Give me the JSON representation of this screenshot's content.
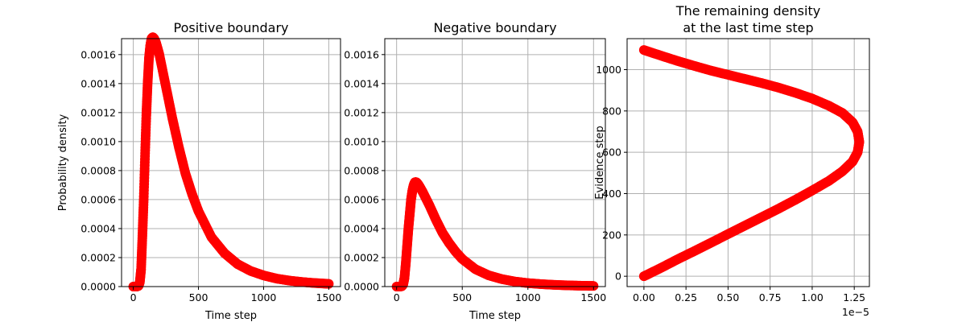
{
  "chart_data": [
    {
      "type": "scatter",
      "title": "Positive boundary",
      "xlabel": "Time step",
      "ylabel": "Probability density",
      "xlim": [
        -90,
        1590
      ],
      "ylim": [
        0,
        0.00171
      ],
      "xticks": [
        0,
        500,
        1000,
        1500
      ],
      "xtick_labels": [
        "0",
        "500",
        "1000",
        "1500"
      ],
      "yticks": [
        0,
        0.0002,
        0.0004,
        0.0006,
        0.0008,
        0.001,
        0.0012,
        0.0014,
        0.0016
      ],
      "ytick_labels": [
        "0.0000",
        "0.0002",
        "0.0004",
        "0.0006",
        "0.0008",
        "0.0010",
        "0.0012",
        "0.0014",
        "0.0016"
      ],
      "grid": true,
      "color": "#ff0000",
      "x": [
        0,
        25,
        40,
        50,
        60,
        70,
        80,
        90,
        100,
        110,
        120,
        130,
        140,
        150,
        160,
        175,
        200,
        250,
        300,
        350,
        400,
        450,
        500,
        600,
        700,
        800,
        900,
        1000,
        1100,
        1200,
        1300,
        1400,
        1500
      ],
      "y": [
        0,
        0,
        5e-06,
        3e-05,
        0.00012,
        0.00035,
        0.0006,
        0.0009,
        0.00118,
        0.0014,
        0.00157,
        0.00166,
        0.00171,
        0.00172,
        0.00171,
        0.00168,
        0.0016,
        0.00138,
        0.00116,
        0.00096,
        0.00078,
        0.00064,
        0.00052,
        0.00034,
        0.00023,
        0.000155,
        0.000108,
        7.7e-05,
        5.5e-05,
        4.1e-05,
        3.1e-05,
        2.4e-05,
        1.9e-05
      ]
    },
    {
      "type": "scatter",
      "title": "Negative boundary",
      "xlabel": "Time step",
      "ylabel": "",
      "xlim": [
        -90,
        1590
      ],
      "ylim": [
        0,
        0.00171
      ],
      "xticks": [
        0,
        500,
        1000,
        1500
      ],
      "xtick_labels": [
        "0",
        "500",
        "1000",
        "1500"
      ],
      "yticks": [
        0,
        0.0002,
        0.0004,
        0.0006,
        0.0008,
        0.001,
        0.0012,
        0.0014,
        0.0016
      ],
      "ytick_labels": [
        "0.0000",
        "0.0002",
        "0.0004",
        "0.0006",
        "0.0008",
        "0.0010",
        "0.0012",
        "0.0014",
        "0.0016"
      ],
      "grid": true,
      "color": "#ff0000",
      "x": [
        0,
        25,
        40,
        50,
        60,
        70,
        80,
        90,
        100,
        110,
        120,
        130,
        140,
        150,
        160,
        175,
        200,
        250,
        300,
        350,
        400,
        450,
        500,
        600,
        700,
        800,
        900,
        1000,
        1100,
        1200,
        1300,
        1400,
        1500
      ],
      "y": [
        0,
        0,
        3e-06,
        1.5e-05,
        6e-05,
        0.00016,
        0.00028,
        0.0004,
        0.0005,
        0.0006,
        0.00066,
        0.0007,
        0.00072,
        0.00072,
        0.00071,
        0.00069,
        0.00065,
        0.00056,
        0.00046,
        0.00037,
        0.0003,
        0.00024,
        0.00019,
        0.00012,
        7.8e-05,
        5.2e-05,
        3.5e-05,
        2.4e-05,
        1.7e-05,
        1.2e-05,
        8.5e-06,
        6e-06,
        4.5e-06
      ]
    },
    {
      "type": "scatter",
      "title": "The remaining density\nat the last time step",
      "xlabel": "",
      "ylabel": "Evidence step",
      "x_offset_label": "1e−5",
      "xlim": [
        -0.1,
        1.34
      ],
      "ylim": [
        -50,
        1150
      ],
      "xticks": [
        0,
        0.25,
        0.5,
        0.75,
        1.0,
        1.25
      ],
      "xtick_labels": [
        "0.00",
        "0.25",
        "0.50",
        "0.75",
        "1.00",
        "1.25"
      ],
      "yticks": [
        0,
        200,
        400,
        600,
        800,
        1000
      ],
      "ytick_labels": [
        "0",
        "200",
        "400",
        "600",
        "800",
        "1000"
      ],
      "grid": true,
      "color": "#ff0000",
      "x": [
        0.0,
        0.1,
        0.2,
        0.3,
        0.4,
        0.5,
        0.6,
        0.7,
        0.8,
        0.9,
        1.0,
        1.1,
        1.18,
        1.24,
        1.27,
        1.28,
        1.27,
        1.24,
        1.18,
        1.1,
        1.0,
        0.9,
        0.8,
        0.7,
        0.6,
        0.5,
        0.4,
        0.3,
        0.2,
        0.1,
        0.0
      ],
      "y": [
        0,
        40,
        82,
        122,
        163,
        204,
        245,
        286,
        327,
        370,
        415,
        462,
        508,
        555,
        600,
        650,
        700,
        745,
        790,
        825,
        860,
        888,
        913,
        935,
        955,
        975,
        995,
        1018,
        1042,
        1068,
        1095
      ]
    }
  ]
}
